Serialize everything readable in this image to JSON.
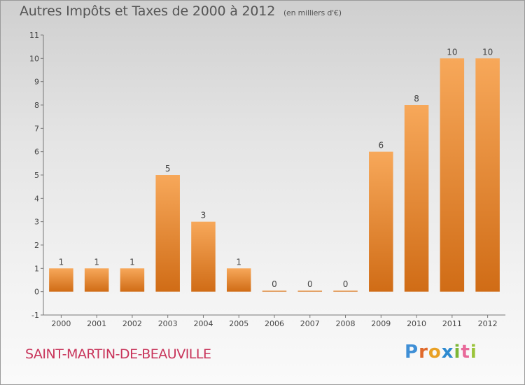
{
  "title": {
    "main": "Autres Impôts et Taxes de 2000 à 2012",
    "unit": "(en milliers d'€)"
  },
  "commune": "SAINT-MARTIN-DE-BEAUVILLE",
  "logo": [
    "P",
    "r",
    "o",
    "x",
    "i",
    "t",
    "i"
  ],
  "colors": {
    "bar_light": "#f7a85a",
    "bar_dark": "#d06c16",
    "title": "#555555",
    "commune": "#c8345a"
  },
  "chart_data": {
    "type": "bar",
    "title": "Autres Impôts et Taxes de 2000 à 2012",
    "subtitle": "(en milliers d'€)",
    "categories": [
      "2000",
      "2001",
      "2002",
      "2003",
      "2004",
      "2005",
      "2006",
      "2007",
      "2008",
      "2009",
      "2010",
      "2011",
      "2012"
    ],
    "values": [
      1,
      1,
      1,
      5,
      3,
      1,
      0,
      0,
      0,
      6,
      8,
      10,
      10
    ],
    "data_labels": [
      "1",
      "1",
      "1",
      "5",
      "3",
      "1",
      "0",
      "0",
      "0",
      "6",
      "8",
      "10",
      "10"
    ],
    "yticks": [
      "-1",
      "0",
      "1",
      "2",
      "3",
      "4",
      "5",
      "6",
      "7",
      "8",
      "9",
      "10",
      "11"
    ],
    "ylim": [
      -1,
      11
    ],
    "grid": false,
    "legend": "none"
  }
}
